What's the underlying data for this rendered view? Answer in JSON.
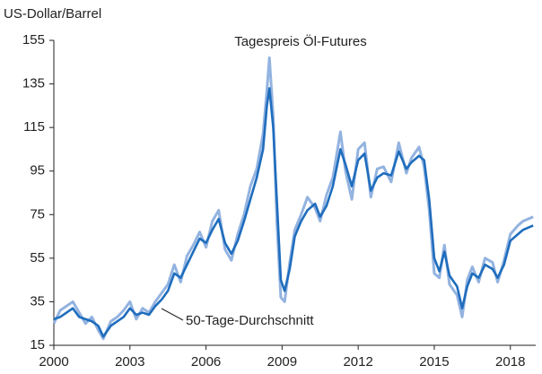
{
  "chart_data": {
    "type": "line",
    "y_label": "US-Dollar/Barrel",
    "annotations": [
      {
        "text": "Tagespreis Öl-Futures"
      },
      {
        "text": "50-Tage-Durchschnitt"
      }
    ],
    "x": [
      2000,
      2000.25,
      2000.5,
      2000.75,
      2001,
      2001.25,
      2001.5,
      2001.75,
      2001.95,
      2002.25,
      2002.5,
      2002.75,
      2003,
      2003.25,
      2003.5,
      2003.75,
      2004,
      2004.25,
      2004.5,
      2004.75,
      2005,
      2005.25,
      2005.5,
      2005.75,
      2006,
      2006.25,
      2006.5,
      2006.75,
      2007,
      2007.25,
      2007.5,
      2007.75,
      2008,
      2008.25,
      2008.4,
      2008.5,
      2008.65,
      2008.8,
      2008.95,
      2009.1,
      2009.3,
      2009.5,
      2009.75,
      2010,
      2010.3,
      2010.5,
      2010.75,
      2011,
      2011.3,
      2011.5,
      2011.75,
      2012,
      2012.25,
      2012.5,
      2012.75,
      2013,
      2013.3,
      2013.6,
      2013.9,
      2014.1,
      2014.4,
      2014.6,
      2014.8,
      2015,
      2015.2,
      2015.4,
      2015.6,
      2015.9,
      2016.1,
      2016.3,
      2016.5,
      2016.75,
      2017,
      2017.3,
      2017.5,
      2017.75,
      2018,
      2018.3,
      2018.5,
      2018.9
    ],
    "series": [
      {
        "name": "Tagespreis Öl-Futures",
        "color": "#93b3e0",
        "width": 3,
        "values": [
          25,
          31,
          33,
          35,
          30,
          25,
          28,
          22,
          18,
          26,
          28,
          31,
          35,
          27,
          32,
          30,
          35,
          39,
          43,
          52,
          44,
          56,
          61,
          67,
          60,
          72,
          77,
          59,
          54,
          66,
          75,
          88,
          96,
          112,
          132,
          147,
          120,
          70,
          37,
          35,
          53,
          68,
          75,
          83,
          78,
          72,
          84,
          92,
          113,
          95,
          82,
          105,
          108,
          83,
          96,
          97,
          90,
          108,
          94,
          101,
          106,
          97,
          77,
          48,
          46,
          61,
          43,
          38,
          28,
          45,
          51,
          44,
          55,
          53,
          44,
          54,
          66,
          70,
          72,
          74
        ]
      },
      {
        "name": "50-Tage-Durchschnitt",
        "color": "#1f6dbd",
        "width": 2.6,
        "values": [
          27,
          28,
          30,
          32,
          28,
          27,
          26,
          24,
          19,
          24,
          26,
          28,
          32,
          29,
          30,
          29,
          33,
          36,
          40,
          48,
          46,
          52,
          58,
          64,
          62,
          68,
          73,
          62,
          57,
          63,
          72,
          82,
          92,
          105,
          125,
          133,
          115,
          80,
          45,
          40,
          50,
          65,
          72,
          77,
          80,
          74,
          79,
          88,
          105,
          98,
          88,
          100,
          103,
          86,
          92,
          94,
          93,
          104,
          96,
          99,
          102,
          100,
          82,
          55,
          49,
          58,
          47,
          42,
          32,
          42,
          48,
          46,
          52,
          50,
          46,
          52,
          63,
          66,
          68,
          70
        ]
      }
    ],
    "xlim": [
      2000,
      2019
    ],
    "xticks": [
      2000,
      2003,
      2006,
      2009,
      2012,
      2015,
      2018
    ],
    "ylim": [
      15,
      155
    ],
    "yticks": [
      15,
      35,
      55,
      75,
      95,
      115,
      135,
      155
    ],
    "grid": false
  }
}
